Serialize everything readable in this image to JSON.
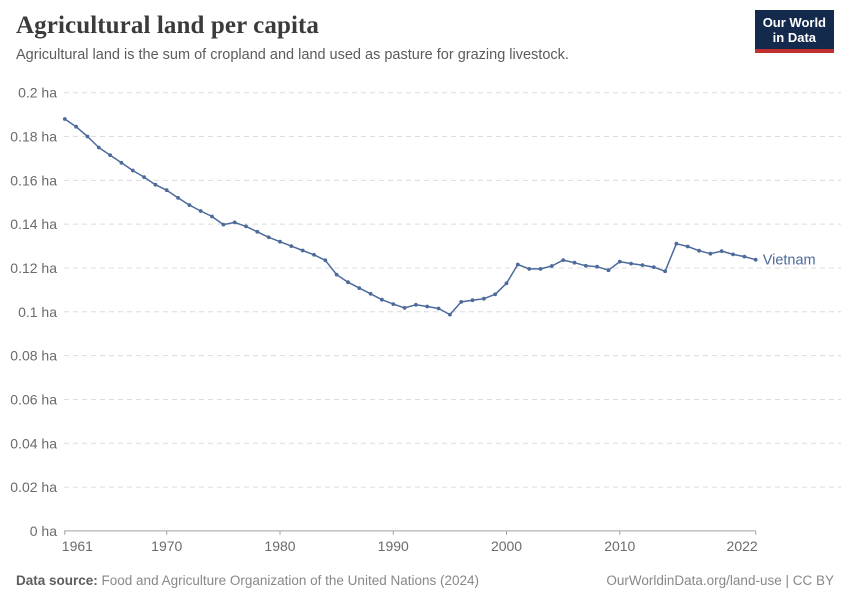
{
  "header": {
    "title": "Agricultural land per capita",
    "subtitle": "Agricultural land is the sum of cropland and land used as pasture for grazing livestock.",
    "logo": {
      "line1": "Our World",
      "line2": "in Data"
    }
  },
  "footer": {
    "datasource_label": "Data source:",
    "datasource_value": " Food and Agriculture Organization of the United Nations (2024)",
    "link": "OurWorldinData.org/land-use",
    "separator": " | ",
    "license": "CC BY"
  },
  "colors": {
    "line": "#4c6a9c",
    "end_label": "#4c6a9c",
    "grid": "#dcdcdc",
    "axis": "#a3a3a3",
    "tick_label": "#6b6b6b",
    "logo_bg": "#132a4d",
    "logo_red": "#c12f30"
  },
  "chart_data": {
    "type": "line",
    "title": "Agricultural land per capita",
    "unit": "ha",
    "xlim": [
      1961,
      2022
    ],
    "ylim": [
      0,
      0.2
    ],
    "grid": "horizontal-dashed",
    "legend_position": "end-of-line-label",
    "x_ticks": [
      1961,
      1970,
      1980,
      1990,
      2000,
      2010,
      2022
    ],
    "y_ticks": [
      0,
      0.02,
      0.04,
      0.06,
      0.08,
      0.1,
      0.12,
      0.14,
      0.16,
      0.18,
      0.2
    ],
    "y_tick_labels": [
      "0 ha",
      "0.02 ha",
      "0.04 ha",
      "0.06 ha",
      "0.08 ha",
      "0.1 ha",
      "0.12 ha",
      "0.14 ha",
      "0.16 ha",
      "0.18 ha",
      "0.2 ha"
    ],
    "series": [
      {
        "name": "Vietnam",
        "x": [
          1961,
          1962,
          1963,
          1964,
          1965,
          1966,
          1967,
          1968,
          1969,
          1970,
          1971,
          1972,
          1973,
          1974,
          1975,
          1976,
          1977,
          1978,
          1979,
          1980,
          1981,
          1982,
          1983,
          1984,
          1985,
          1986,
          1987,
          1988,
          1989,
          1990,
          1991,
          1992,
          1993,
          1994,
          1995,
          1996,
          1997,
          1998,
          1999,
          2000,
          2001,
          2002,
          2003,
          2004,
          2005,
          2006,
          2007,
          2008,
          2009,
          2010,
          2011,
          2012,
          2013,
          2014,
          2015,
          2016,
          2017,
          2018,
          2019,
          2020,
          2021,
          2022
        ],
        "values": [
          0.188,
          0.1845,
          0.18,
          0.175,
          0.1715,
          0.168,
          0.1645,
          0.1615,
          0.158,
          0.1555,
          0.152,
          0.1487,
          0.146,
          0.1435,
          0.1398,
          0.1408,
          0.139,
          0.1365,
          0.134,
          0.132,
          0.13,
          0.128,
          0.126,
          0.1235,
          0.117,
          0.1135,
          0.1108,
          0.1082,
          0.1055,
          0.1035,
          0.1018,
          0.1032,
          0.1024,
          0.1015,
          0.0987,
          0.1045,
          0.1053,
          0.106,
          0.108,
          0.113,
          0.1216,
          0.1196,
          0.1196,
          0.1209,
          0.1236,
          0.1224,
          0.121,
          0.1206,
          0.119,
          0.1229,
          0.122,
          0.1213,
          0.1204,
          0.1185,
          0.1311,
          0.1298,
          0.1279,
          0.1265,
          0.1277,
          0.1262,
          0.1252,
          0.1238
        ]
      }
    ]
  }
}
